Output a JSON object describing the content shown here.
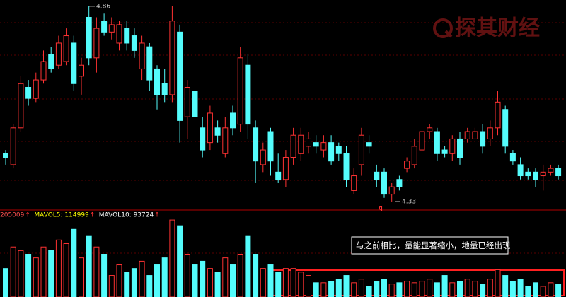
{
  "chart_data": [
    {
      "type": "candlestick",
      "up_color": "#ff3232",
      "down_color": "#54fcfc",
      "ylim": [
        4.307,
        4.877
      ],
      "open": [
        4.46,
        4.43,
        4.53,
        4.64,
        4.61,
        4.66,
        4.73,
        4.7,
        4.71,
        4.76,
        4.67,
        4.83,
        4.72,
        4.82,
        4.79,
        4.76,
        4.8,
        4.78,
        4.69,
        4.75,
        4.69,
        4.65,
        4.62,
        4.79,
        4.56,
        4.63,
        4.53,
        4.49,
        4.53,
        4.46,
        4.57,
        4.54,
        4.7,
        4.53,
        4.43,
        4.52,
        4.41,
        4.39,
        4.45,
        4.46,
        4.48,
        4.49,
        4.47,
        4.49,
        4.48,
        4.46,
        4.36,
        4.43,
        4.49,
        4.41,
        4.41,
        4.35,
        4.39,
        4.42,
        4.43,
        4.47,
        4.52,
        4.52,
        4.47,
        4.46,
        4.5,
        4.5,
        4.5,
        4.52,
        4.5,
        4.53,
        4.58,
        4.46,
        4.43,
        4.41,
        4.41,
        4.4,
        4.41,
        4.42
      ],
      "high": [
        4.47,
        4.54,
        4.67,
        4.66,
        4.68,
        4.74,
        4.75,
        4.78,
        4.8,
        4.78,
        4.72,
        4.86,
        4.83,
        4.84,
        4.83,
        4.82,
        4.82,
        4.8,
        4.78,
        4.76,
        4.7,
        4.69,
        4.86,
        4.81,
        4.66,
        4.66,
        4.56,
        4.59,
        4.55,
        4.56,
        4.59,
        4.75,
        4.73,
        4.55,
        4.49,
        4.53,
        4.46,
        4.47,
        4.53,
        4.53,
        4.52,
        4.51,
        4.51,
        4.51,
        4.49,
        4.48,
        4.42,
        4.53,
        4.51,
        4.43,
        4.42,
        4.38,
        4.4,
        4.45,
        4.5,
        4.56,
        4.54,
        4.53,
        4.48,
        4.51,
        4.52,
        4.53,
        4.53,
        4.54,
        4.55,
        4.63,
        4.59,
        4.47,
        4.45,
        4.42,
        4.42,
        4.43,
        4.43,
        4.43
      ],
      "low": [
        4.43,
        4.42,
        4.52,
        4.59,
        4.6,
        4.65,
        4.68,
        4.69,
        4.7,
        4.63,
        4.62,
        4.7,
        4.68,
        4.78,
        4.77,
        4.74,
        4.74,
        4.72,
        4.66,
        4.63,
        4.58,
        4.6,
        4.6,
        4.49,
        4.5,
        4.53,
        4.45,
        4.47,
        4.49,
        4.45,
        4.51,
        4.52,
        4.5,
        4.38,
        4.41,
        4.4,
        4.38,
        4.37,
        4.43,
        4.44,
        4.46,
        4.46,
        4.45,
        4.43,
        4.44,
        4.37,
        4.35,
        4.4,
        4.46,
        4.37,
        4.34,
        4.33,
        4.36,
        4.41,
        4.42,
        4.45,
        4.5,
        4.44,
        4.45,
        4.44,
        4.43,
        4.49,
        4.5,
        4.46,
        4.48,
        4.51,
        4.46,
        4.43,
        4.39,
        4.39,
        4.37,
        4.36,
        4.4,
        4.39
      ],
      "close": [
        4.45,
        4.53,
        4.65,
        4.61,
        4.66,
        4.71,
        4.69,
        4.76,
        4.78,
        4.65,
        4.7,
        4.72,
        4.8,
        4.79,
        4.81,
        4.81,
        4.76,
        4.74,
        4.76,
        4.66,
        4.62,
        4.62,
        4.82,
        4.55,
        4.64,
        4.56,
        4.47,
        4.57,
        4.51,
        4.53,
        4.53,
        4.72,
        4.54,
        4.44,
        4.47,
        4.44,
        4.39,
        4.45,
        4.51,
        4.51,
        4.5,
        4.48,
        4.49,
        4.44,
        4.46,
        4.39,
        4.4,
        4.51,
        4.48,
        4.39,
        4.35,
        4.37,
        4.37,
        4.44,
        4.48,
        4.52,
        4.53,
        4.46,
        4.46,
        4.5,
        4.45,
        4.52,
        4.52,
        4.48,
        4.53,
        4.6,
        4.48,
        4.44,
        4.4,
        4.4,
        4.39,
        4.41,
        4.42,
        4.4
      ],
      "annotations": {
        "max": 4.86,
        "min": 4.33,
        "marker": "q"
      },
      "watermark": "探其财经"
    },
    {
      "type": "bar",
      "up_color": "#ff3232",
      "down_color": "#54fcfc",
      "ylim": [
        0,
        300000
      ],
      "values": [
        110000,
        193000,
        179000,
        165000,
        151000,
        193000,
        179000,
        220000,
        206000,
        261000,
        151000,
        234000,
        193000,
        165000,
        83000,
        124000,
        96000,
        110000,
        138000,
        83000,
        124000,
        151000,
        297000,
        275000,
        165000,
        124000,
        138000,
        110000,
        96000,
        151000,
        124000,
        165000,
        234000,
        165000,
        110000,
        124000,
        96000,
        110000,
        110000,
        96000,
        83000,
        55000,
        55000,
        61000,
        69000,
        83000,
        55000,
        69000,
        41000,
        61000,
        69000,
        50000,
        55000,
        61000,
        55000,
        61000,
        69000,
        55000,
        83000,
        55000,
        61000,
        69000,
        61000,
        50000,
        69000,
        105000,
        83000,
        61000,
        69000,
        41000,
        55000,
        41000,
        55000,
        50000
      ],
      "legend": [
        {
          "text": "205009",
          "color": "#ff5050"
        },
        {
          "text": "MAVOL5: 114999",
          "color": "#ffff00"
        },
        {
          "text": "MAVOL10: 93724",
          "color": "#ffffff"
        }
      ],
      "arrow": "↑",
      "annotation": "与之前相比，量能显著缩小，地量已经出现"
    }
  ]
}
